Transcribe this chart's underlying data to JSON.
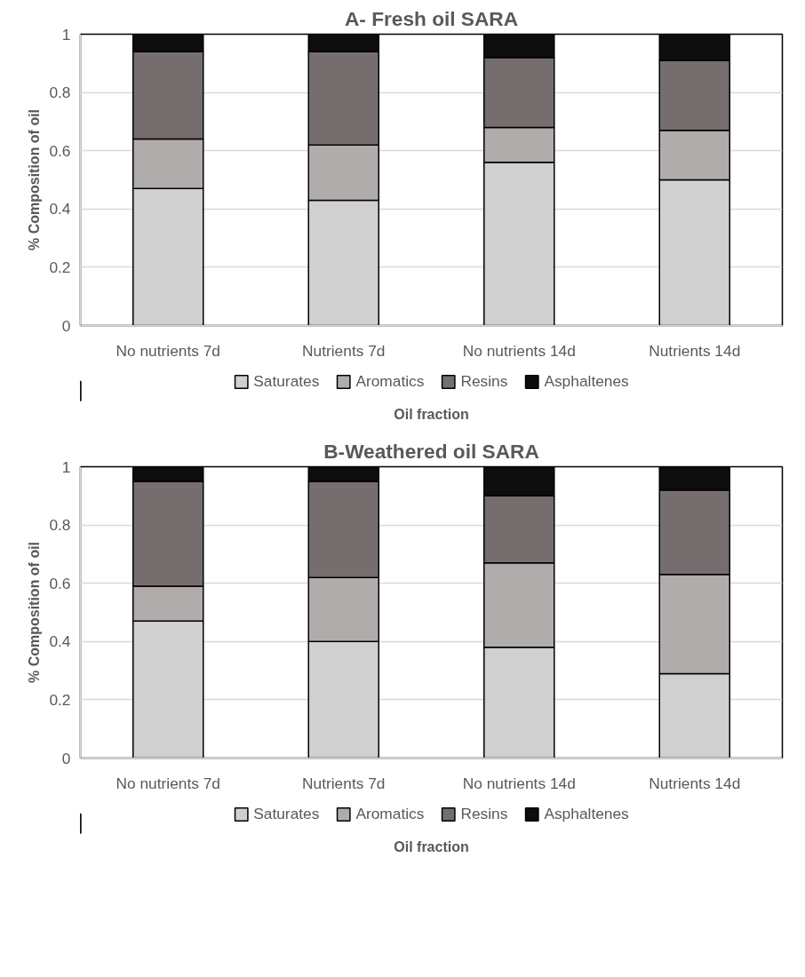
{
  "chart_data": [
    {
      "type": "bar",
      "title": "A- Fresh oil SARA",
      "xlabel": "Oil fraction",
      "ylabel": "% Composition of oil",
      "stacked": true,
      "categories": [
        "No nutrients 7d",
        "Nutrients 7d",
        "No nutrients 14d",
        "Nutrients 14d"
      ],
      "series": [
        {
          "name": "Saturates",
          "color": "#d0d0d0",
          "values": [
            0.47,
            0.43,
            0.56,
            0.5
          ]
        },
        {
          "name": "Aromatics",
          "color": "#b0acab",
          "values": [
            0.17,
            0.19,
            0.12,
            0.17
          ]
        },
        {
          "name": "Resins",
          "color": "#766e6e",
          "values": [
            0.3,
            0.32,
            0.24,
            0.24
          ]
        },
        {
          "name": "Asphaltenes",
          "color": "#0d0d0d",
          "values": [
            0.06,
            0.06,
            0.08,
            0.09
          ]
        }
      ],
      "ylim": [
        0,
        1
      ],
      "yticks": [
        0,
        0.2,
        0.4,
        0.6,
        0.8,
        1
      ],
      "grid": "y",
      "legend": "bottom"
    },
    {
      "type": "bar",
      "title": "B-Weathered oil SARA",
      "xlabel": "Oil fraction",
      "ylabel": "% Composition of oil",
      "stacked": true,
      "categories": [
        "No nutrients 7d",
        "Nutrients 7d",
        "No nutrients 14d",
        "Nutrients 14d"
      ],
      "series": [
        {
          "name": "Saturates",
          "color": "#d0d0d0",
          "values": [
            0.47,
            0.4,
            0.38,
            0.29
          ]
        },
        {
          "name": "Aromatics",
          "color": "#b0acab",
          "values": [
            0.12,
            0.22,
            0.29,
            0.34
          ]
        },
        {
          "name": "Resins",
          "color": "#766e6e",
          "values": [
            0.36,
            0.33,
            0.23,
            0.29
          ]
        },
        {
          "name": "Asphaltenes",
          "color": "#0d0d0d",
          "values": [
            0.05,
            0.05,
            0.1,
            0.08
          ]
        }
      ],
      "ylim": [
        0,
        1
      ],
      "yticks": [
        0,
        0.2,
        0.4,
        0.6,
        0.8,
        1
      ],
      "grid": "y",
      "legend": "bottom"
    }
  ]
}
